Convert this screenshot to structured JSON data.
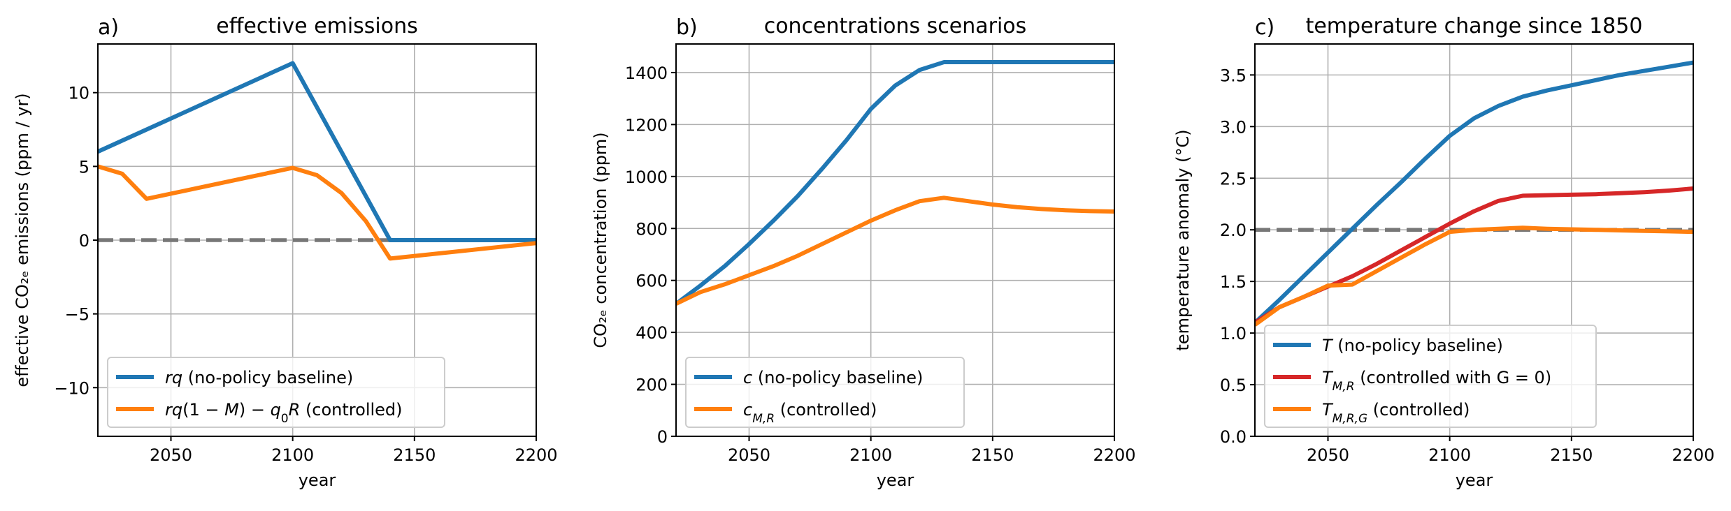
{
  "chart_data": [
    {
      "type": "line",
      "panel_label": "a)",
      "title": "effective emissions",
      "xlabel": "year",
      "ylabel": "effective CO₂ₑ emissions (ppm / yr)",
      "xlim": [
        2020,
        2200
      ],
      "ylim": [
        -13.3,
        13.3
      ],
      "xticks": [
        2050,
        2100,
        2150,
        2200
      ],
      "xtick_labels": [
        "2050",
        "2100",
        "2150",
        "2200"
      ],
      "yticks": [
        -10,
        -5,
        0,
        5,
        10
      ],
      "ytick_labels": [
        "−10",
        "−5",
        "0",
        "5",
        "10"
      ],
      "grid": true,
      "legend_position": "lower-left",
      "series": [
        {
          "name": "rq (no-policy baseline)",
          "color": "#1f77b4",
          "x": [
            2020,
            2100,
            2140,
            2200
          ],
          "y": [
            6.0,
            12.0,
            0.0,
            0.0
          ]
        },
        {
          "name": "rq(1 − M) − q₀R (controlled)",
          "color": "#ff7f0e",
          "x": [
            2020,
            2030,
            2040,
            2100,
            2110,
            2120,
            2130,
            2140,
            2200
          ],
          "y": [
            5.0,
            4.5,
            2.8,
            4.9,
            4.4,
            3.2,
            1.3,
            -1.25,
            -0.2
          ]
        }
      ],
      "reference_lines": [
        {
          "y": 2e-16,
          "y_value": 0,
          "color": "#777777",
          "style": "dashed"
        }
      ]
    },
    {
      "type": "line",
      "panel_label": "b)",
      "title": "concentrations scenarios",
      "xlabel": "year",
      "ylabel": "CO₂ₑ concentration (ppm)",
      "xlim": [
        2020,
        2200
      ],
      "ylim": [
        0,
        1510
      ],
      "xticks": [
        2050,
        2100,
        2150,
        2200
      ],
      "xtick_labels": [
        "2050",
        "2100",
        "2150",
        "2200"
      ],
      "yticks": [
        0,
        200,
        400,
        600,
        800,
        1000,
        1200,
        1400
      ],
      "ytick_labels": [
        "0",
        "200",
        "400",
        "600",
        "800",
        "1000",
        "1200",
        "1400"
      ],
      "grid": true,
      "legend_position": "lower-left",
      "series": [
        {
          "name": "c (no-policy baseline)",
          "color": "#1f77b4",
          "x": [
            2020,
            2030,
            2040,
            2050,
            2060,
            2070,
            2080,
            2090,
            2100,
            2110,
            2120,
            2130,
            2140,
            2150,
            2160,
            2170,
            2180,
            2190,
            2200
          ],
          "y": [
            510,
            580,
            655,
            740,
            830,
            925,
            1030,
            1140,
            1260,
            1350,
            1410,
            1440,
            1440,
            1440,
            1440,
            1440,
            1440,
            1440,
            1440
          ]
        },
        {
          "name": "c_{M,R} (controlled)",
          "color": "#ff7f0e",
          "x": [
            2020,
            2030,
            2040,
            2050,
            2060,
            2070,
            2080,
            2090,
            2100,
            2110,
            2120,
            2130,
            2140,
            2150,
            2160,
            2170,
            2180,
            2190,
            2200
          ],
          "y": [
            510,
            555,
            585,
            620,
            655,
            695,
            740,
            785,
            830,
            870,
            905,
            918,
            905,
            892,
            882,
            875,
            870,
            867,
            865
          ]
        }
      ],
      "reference_lines": []
    },
    {
      "type": "line",
      "panel_label": "c)",
      "title": "temperature change since 1850",
      "xlabel": "year",
      "ylabel": "temperature anomaly (°C)",
      "xlim": [
        2020,
        2200
      ],
      "ylim": [
        0,
        3.8
      ],
      "xticks": [
        2050,
        2100,
        2150,
        2200
      ],
      "xtick_labels": [
        "2050",
        "2100",
        "2150",
        "2200"
      ],
      "yticks": [
        0.0,
        0.5,
        1.0,
        1.5,
        2.0,
        2.5,
        3.0,
        3.5
      ],
      "ytick_labels": [
        "0.0",
        "0.5",
        "1.0",
        "1.5",
        "2.0",
        "2.5",
        "3.0",
        "3.5"
      ],
      "grid": true,
      "legend_position": "lower-left",
      "series": [
        {
          "name": "T (no-policy baseline)",
          "color": "#1f77b4",
          "x": [
            2020,
            2030,
            2040,
            2050,
            2060,
            2070,
            2080,
            2090,
            2100,
            2110,
            2120,
            2130,
            2140,
            2150,
            2160,
            2170,
            2180,
            2190,
            2200
          ],
          "y": [
            1.1,
            1.32,
            1.55,
            1.78,
            2.01,
            2.24,
            2.46,
            2.69,
            2.91,
            3.08,
            3.2,
            3.29,
            3.35,
            3.4,
            3.45,
            3.5,
            3.54,
            3.58,
            3.62
          ]
        },
        {
          "name": "T_{M,R} (controlled with G = 0)",
          "color": "#d62728",
          "x": [
            2020,
            2030,
            2040,
            2050,
            2060,
            2070,
            2080,
            2090,
            2100,
            2110,
            2120,
            2130,
            2140,
            2150,
            2160,
            2170,
            2180,
            2190,
            2200
          ],
          "y": [
            1.1,
            1.25,
            1.35,
            1.45,
            1.55,
            1.67,
            1.8,
            1.93,
            2.06,
            2.18,
            2.28,
            2.33,
            2.335,
            2.34,
            2.345,
            2.355,
            2.365,
            2.38,
            2.4
          ]
        },
        {
          "name": "T_{M,R,G} (controlled)",
          "color": "#ff7f0e",
          "x": [
            2020,
            2030,
            2040,
            2050,
            2060,
            2070,
            2080,
            2090,
            2100,
            2110,
            2120,
            2130,
            2140,
            2150,
            2160,
            2170,
            2180,
            2190,
            2200
          ],
          "y": [
            1.08,
            1.25,
            1.35,
            1.46,
            1.47,
            1.6,
            1.73,
            1.86,
            1.98,
            2.0,
            2.01,
            2.02,
            2.01,
            2.005,
            2.0,
            1.995,
            1.99,
            1.985,
            1.98
          ]
        }
      ],
      "reference_lines": [
        {
          "y_value": 2.0,
          "color": "#777777",
          "style": "dashed"
        }
      ]
    }
  ]
}
